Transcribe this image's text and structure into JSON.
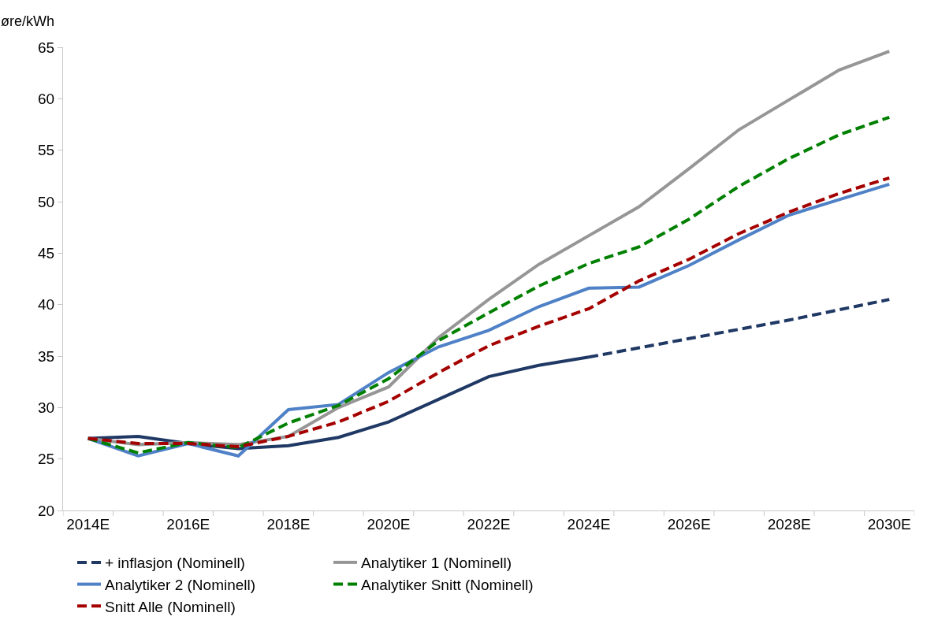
{
  "chart_data": {
    "type": "line",
    "ylabel": "øre/kWh",
    "categories": [
      "2014E",
      null,
      "2016E",
      null,
      "2018E",
      null,
      "2020E",
      null,
      "2022E",
      null,
      "2024E",
      null,
      "2026E",
      null,
      "2028E",
      null,
      "2030E"
    ],
    "series": [
      {
        "name": null,
        "color": "#1f3864",
        "line_style": "solid",
        "values": [
          27,
          27.2,
          26.5,
          26.0,
          26.3,
          27.1,
          28.6,
          30.8,
          33.0,
          34.1,
          34.9,
          null,
          null,
          null,
          null,
          null,
          null
        ]
      },
      {
        "name": "+ inflasjon (Nominell)",
        "color": "#1f3864",
        "line_style": "dashed",
        "values": [
          null,
          null,
          null,
          null,
          null,
          null,
          null,
          null,
          null,
          null,
          34.9,
          35.8,
          36.7,
          37.6,
          38.5,
          39.5,
          40.5
        ]
      },
      {
        "name": "Analytiker 1 (Nominell)",
        "color": "#969696",
        "line_style": "solid",
        "values": [
          27,
          26.4,
          26.6,
          26.4,
          27.2,
          30.0,
          32.0,
          36.8,
          40.5,
          43.9,
          46.7,
          49.5,
          53.2,
          57.0,
          59.9,
          62.8,
          64.6
        ]
      },
      {
        "name": "Analytiker 2 (Nominell)",
        "color": "#4f81c7",
        "line_style": "solid",
        "values": [
          27,
          25.3,
          26.5,
          25.3,
          29.8,
          30.3,
          33.4,
          35.9,
          37.5,
          39.8,
          41.6,
          41.7,
          43.8,
          46.3,
          48.7,
          50.2,
          51.7
        ]
      },
      {
        "name": "Analytiker Snitt (Nominell)",
        "color": "#008000",
        "line_style": "dashed",
        "values": [
          27,
          25.6,
          26.6,
          26.1,
          28.5,
          30.2,
          32.8,
          36.5,
          39.2,
          41.8,
          44.0,
          45.6,
          48.3,
          51.5,
          54.2,
          56.5,
          58.2
        ]
      },
      {
        "name": "Snitt Alle (Nominell)",
        "color": "#a50000",
        "line_style": "dashed",
        "values": [
          27,
          26.5,
          26.5,
          26.2,
          27.2,
          28.6,
          30.6,
          33.4,
          36.0,
          37.9,
          39.6,
          42.3,
          44.4,
          46.9,
          49.0,
          50.8,
          52.3
        ]
      }
    ],
    "ylim": [
      20,
      65
    ],
    "yticks": [
      20,
      25,
      30,
      35,
      40,
      45,
      50,
      55,
      60,
      65
    ],
    "grid": false,
    "legend": "bottom",
    "marker": "none"
  }
}
